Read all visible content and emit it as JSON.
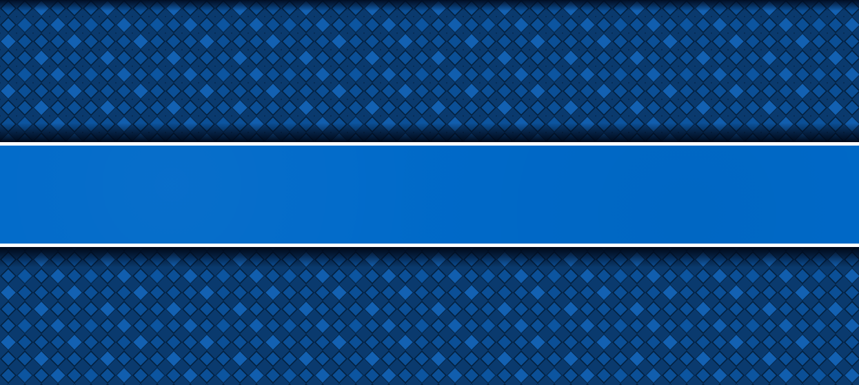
{
  "colors": {
    "pattern_dark": "#0a3a6e",
    "pattern_light": "#0a5fb3",
    "pattern_line": "#03203f",
    "banner_fill": "#006ac9",
    "banner_border": "#ffffff"
  },
  "banner": {
    "text": ""
  }
}
